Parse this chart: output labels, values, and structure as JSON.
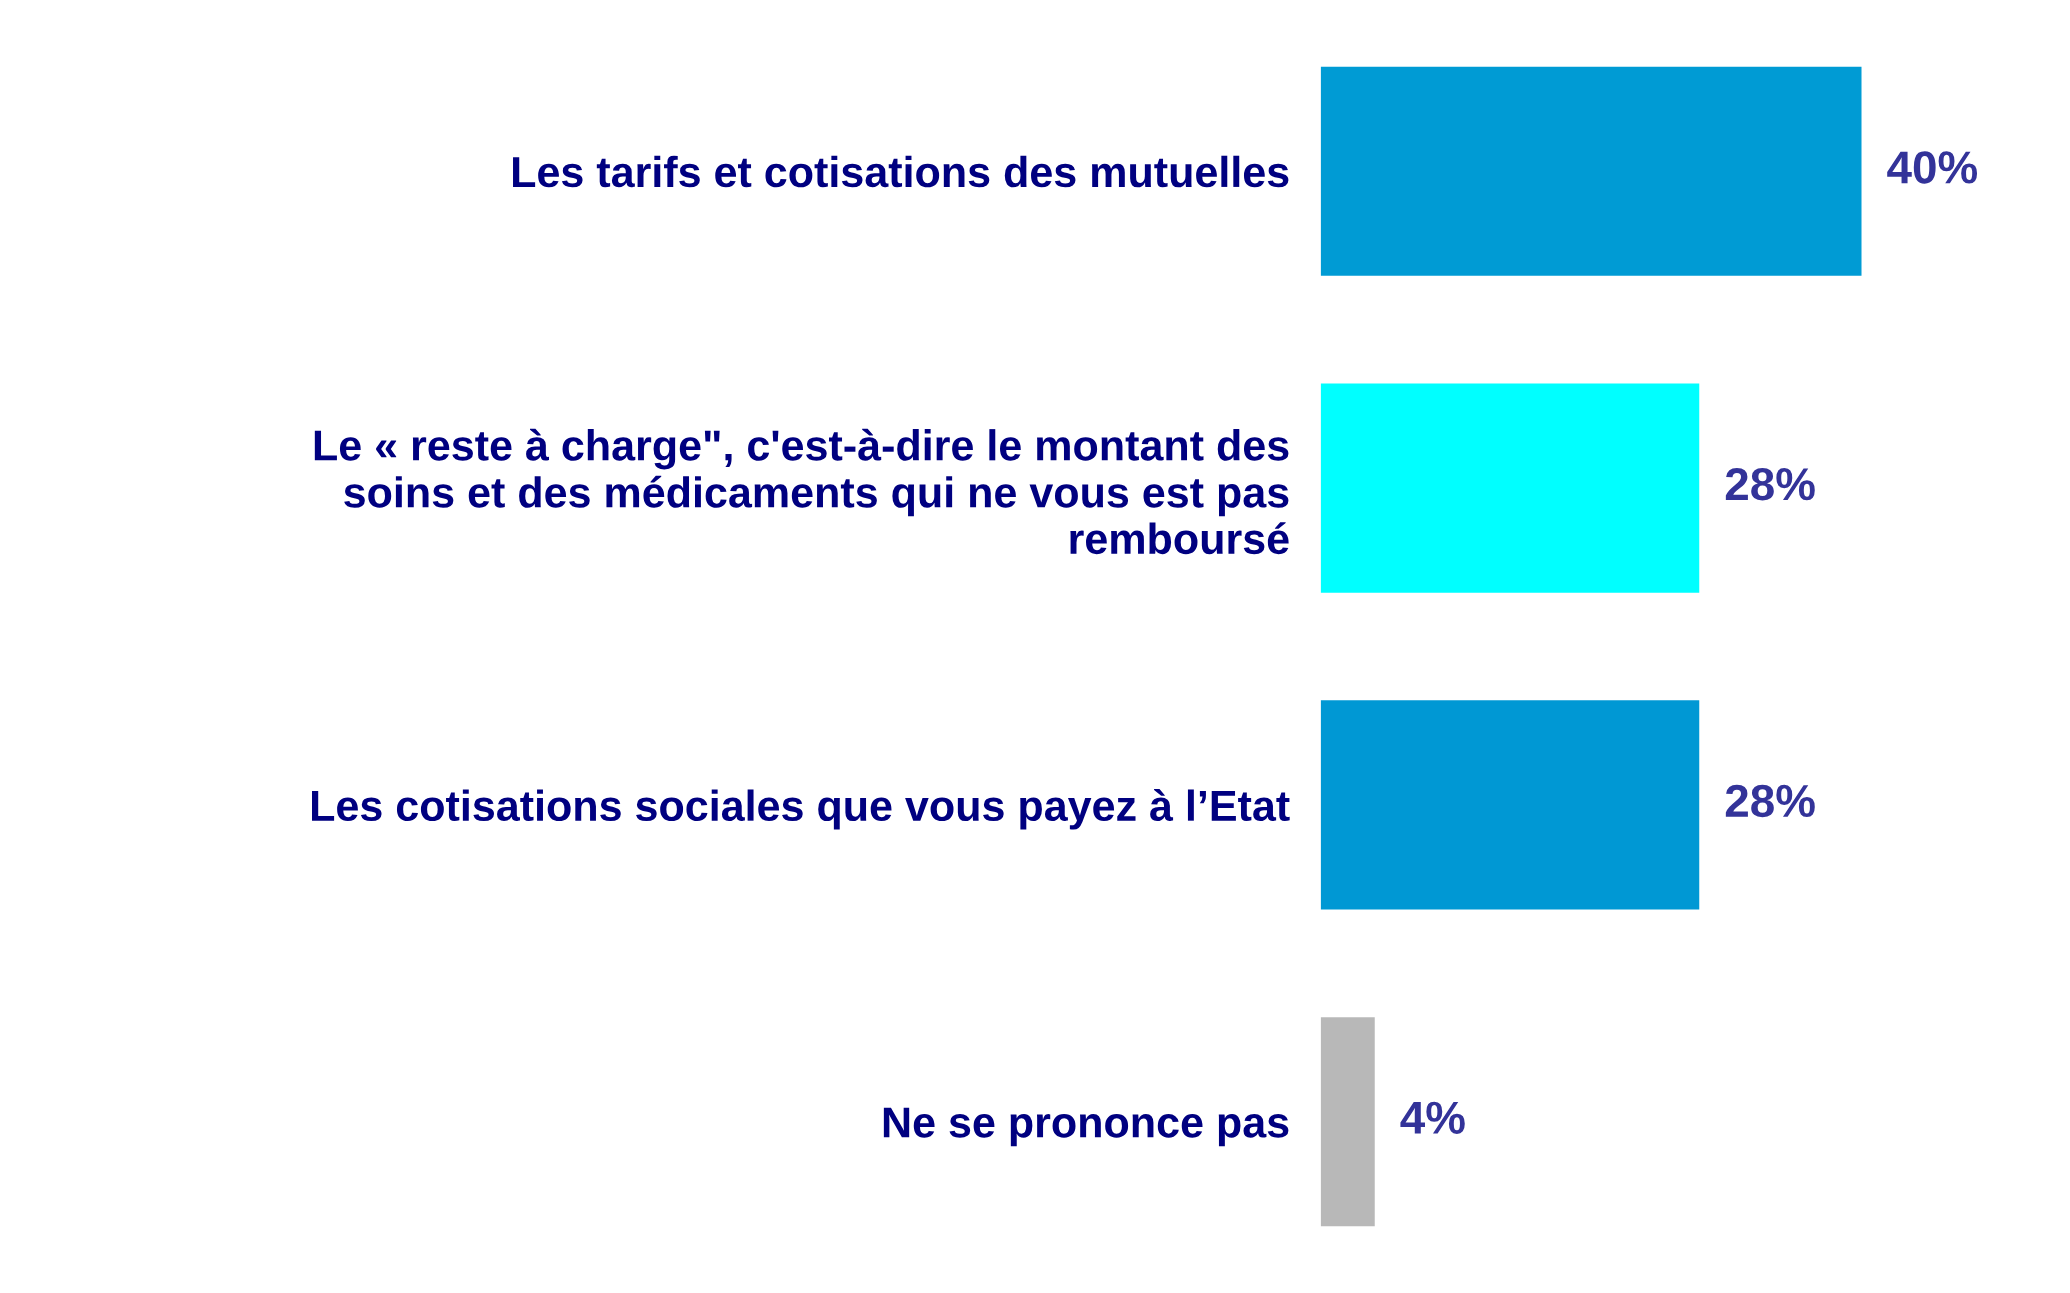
{
  "chart_data": {
    "type": "bar",
    "orientation": "horizontal",
    "categories": [
      "Les tarifs et cotisations des mutuelles",
      "Le « reste à charge\", c'est-à-dire le montant des\nsoins et des médicaments qui ne vous est pas\nremboursé",
      "Les cotisations sociales que vous payez à l’Etat",
      "Ne se prononce pas"
    ],
    "values": [
      40,
      28,
      28,
      4
    ],
    "colors": [
      "#009bd4",
      "#00ffff",
      "#0098d4",
      "#b8b8b8"
    ],
    "value_labels": [
      "40%",
      "28%",
      "28%",
      "4%"
    ],
    "tick_labels": "y",
    "grid": false,
    "legend": false
  }
}
